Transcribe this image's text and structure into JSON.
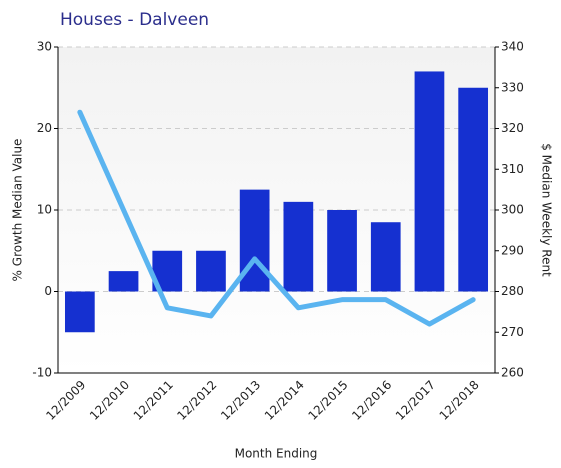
{
  "chart_data": {
    "type": "bar",
    "title": "Houses - Dalveen",
    "categories": [
      "12/2009",
      "12/2010",
      "12/2011",
      "12/2012",
      "12/2013",
      "12/2014",
      "12/2015",
      "12/2016",
      "12/2017",
      "12/2018"
    ],
    "series": [
      {
        "name": "% Growth Median Value",
        "type": "bar",
        "color": "#1530d0",
        "values": [
          -5,
          2.5,
          5,
          5,
          12.5,
          11,
          10,
          8.5,
          27,
          25
        ]
      },
      {
        "name": "$ Median Weekly Rent",
        "type": "line",
        "axis": "y2",
        "color": "#5ab4f0",
        "values": [
          324,
          300,
          276,
          274,
          288,
          276,
          278,
          278,
          272,
          278
        ]
      }
    ],
    "x_label": "Month Ending",
    "y_label": "% Growth Median Value",
    "y2_label": "$ Median Weekly Rent",
    "ylim": [
      -10,
      30
    ],
    "yticks": [
      -10,
      0,
      10,
      20,
      30
    ],
    "y2lim": [
      260,
      340
    ],
    "y2ticks": [
      260,
      270,
      280,
      290,
      300,
      310,
      320,
      330,
      340
    ],
    "grid": true
  }
}
